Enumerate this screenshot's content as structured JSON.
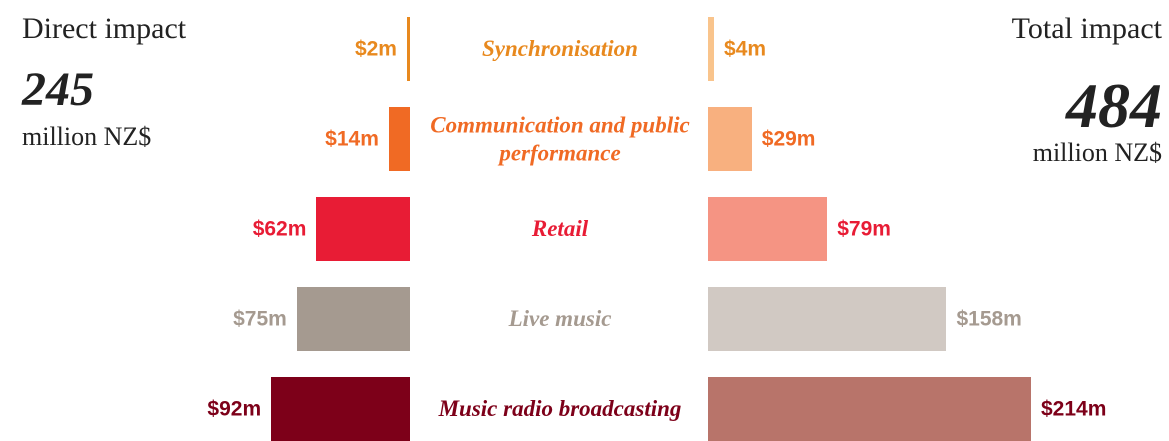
{
  "chart_data": {
    "type": "butterfly",
    "categories": [
      "Synchronisation",
      "Communication and public performance",
      "Retail",
      "Live music",
      "Music radio broadcasting"
    ],
    "series": [
      {
        "name": "Direct impact",
        "total": 245,
        "unit": "million NZ$",
        "colors": [
          "#e8891e",
          "#f06a24",
          "#e81c35",
          "#a59a90",
          "#7d0019"
        ],
        "values": [
          2,
          14,
          62,
          75,
          92
        ],
        "value_labels": [
          "$2m",
          "$14m",
          "$62m",
          "$75m",
          "$92m"
        ]
      },
      {
        "name": "Total impact",
        "total": 484,
        "unit": "million NZ$",
        "colors": [
          "#f9c48c",
          "#f8b07f",
          "#f59483",
          "#d1c9c3",
          "#b8746a"
        ],
        "values": [
          4,
          29,
          79,
          158,
          214
        ],
        "value_labels": [
          "$4m",
          "$29m",
          "$79m",
          "$158m",
          "$214m"
        ]
      }
    ]
  }
}
